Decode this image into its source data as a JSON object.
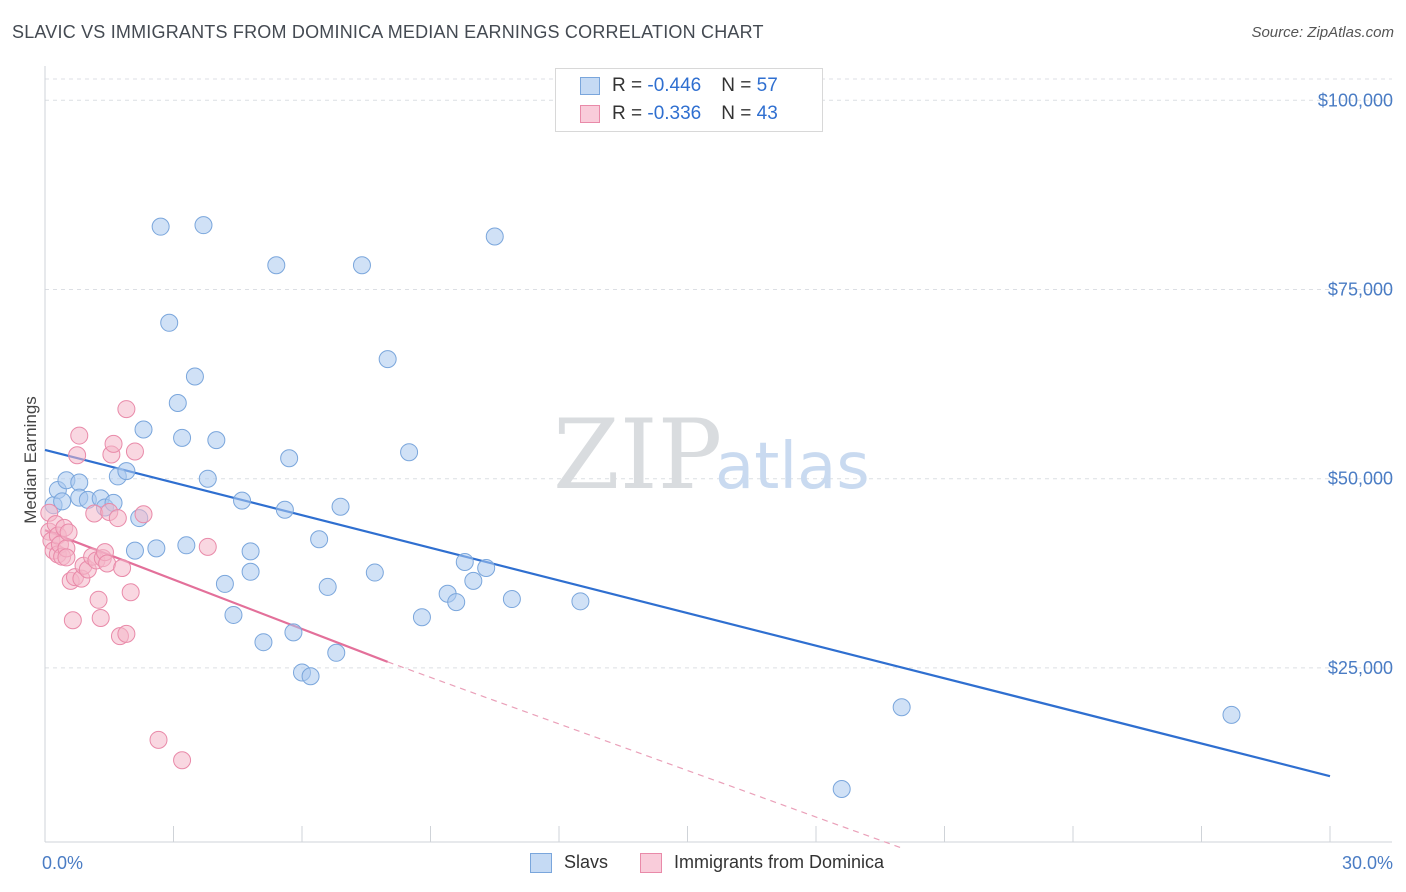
{
  "title": "SLAVIC VS IMMIGRANTS FROM DOMINICA MEDIAN EARNINGS CORRELATION CHART",
  "source": "Source: ZipAtlas.com",
  "watermark": {
    "part1": "ZIP",
    "part2": "atlas"
  },
  "legend": {
    "rows": [
      {
        "r_label": "R = ",
        "r_value": "-0.446",
        "n_label": "N = ",
        "n_value": "57",
        "color": "#a9c8ee"
      },
      {
        "r_label": "R = ",
        "r_value": "-0.336",
        "n_label": "N = ",
        "n_value": "43",
        "color": "#f4b7c9"
      }
    ]
  },
  "bottom_legend": [
    {
      "label": "Slavs",
      "color": "#a9c8ee"
    },
    {
      "label": "Immigrants from Dominica",
      "color": "#f4b7c9"
    }
  ],
  "chart_data": {
    "type": "scatter",
    "xlabel": "",
    "ylabel": "Median Earnings",
    "x_tick_labels": [
      "0.0%",
      "30.0%"
    ],
    "y_tick_labels": [
      "$25,000",
      "$50,000",
      "$75,000",
      "$100,000"
    ],
    "y_tick_values": [
      25000,
      50000,
      75000,
      100000
    ],
    "xlim": [
      0,
      30
    ],
    "ylim": [
      2000,
      104000
    ],
    "grid": true,
    "series": [
      {
        "name": "Slavs",
        "color": "#a9c8ee",
        "stroke": "#7aa6dc",
        "trend": {
          "x0": 0,
          "y0": 53800,
          "x1": 30,
          "y1": 10700,
          "color": "#2f6fd0"
        },
        "points": [
          [
            0.2,
            46500
          ],
          [
            0.3,
            48500
          ],
          [
            0.5,
            49800
          ],
          [
            0.4,
            47000
          ],
          [
            0.8,
            49500
          ],
          [
            0.8,
            47500
          ],
          [
            1.0,
            47200
          ],
          [
            1.3,
            47400
          ],
          [
            1.4,
            46200
          ],
          [
            1.6,
            46800
          ],
          [
            1.7,
            50300
          ],
          [
            1.9,
            51000
          ],
          [
            2.1,
            40500
          ],
          [
            2.2,
            44800
          ],
          [
            2.3,
            56500
          ],
          [
            2.6,
            40800
          ],
          [
            2.7,
            83300
          ],
          [
            2.9,
            70600
          ],
          [
            3.1,
            60000
          ],
          [
            3.2,
            55400
          ],
          [
            3.3,
            41200
          ],
          [
            3.5,
            63500
          ],
          [
            3.7,
            83500
          ],
          [
            3.8,
            50000
          ],
          [
            4.0,
            55100
          ],
          [
            4.2,
            36100
          ],
          [
            4.4,
            32000
          ],
          [
            4.6,
            47100
          ],
          [
            4.8,
            37700
          ],
          [
            4.8,
            40400
          ],
          [
            5.1,
            28400
          ],
          [
            5.4,
            78200
          ],
          [
            5.6,
            45900
          ],
          [
            5.7,
            52700
          ],
          [
            5.8,
            29700
          ],
          [
            6.0,
            24400
          ],
          [
            6.2,
            23900
          ],
          [
            6.4,
            42000
          ],
          [
            6.6,
            35700
          ],
          [
            6.8,
            27000
          ],
          [
            6.9,
            46300
          ],
          [
            7.4,
            78200
          ],
          [
            7.7,
            37600
          ],
          [
            8.0,
            65800
          ],
          [
            8.5,
            53500
          ],
          [
            8.8,
            31700
          ],
          [
            9.4,
            34800
          ],
          [
            9.6,
            33700
          ],
          [
            9.8,
            39000
          ],
          [
            10.0,
            36500
          ],
          [
            10.3,
            38200
          ],
          [
            10.5,
            82000
          ],
          [
            10.9,
            34100
          ],
          [
            12.5,
            33800
          ],
          [
            18.6,
            9000
          ],
          [
            20.0,
            19800
          ],
          [
            27.7,
            18800
          ]
        ]
      },
      {
        "name": "Immigrants from Dominica",
        "color": "#f4b7c9",
        "stroke": "#e98aa9",
        "trend": {
          "x0": 0,
          "y0": 43200,
          "x1": 8,
          "y1": 25800,
          "color": "#e3709a"
        },
        "trend_dashed": {
          "x0": 8,
          "y0": 25800,
          "x1": 20,
          "y1": 1200,
          "color": "#eaa0b9"
        },
        "points": [
          [
            0.1,
            45500
          ],
          [
            0.1,
            43000
          ],
          [
            0.15,
            41800
          ],
          [
            0.2,
            40500
          ],
          [
            0.25,
            44000
          ],
          [
            0.3,
            42500
          ],
          [
            0.3,
            40000
          ],
          [
            0.35,
            41300
          ],
          [
            0.4,
            39700
          ],
          [
            0.45,
            43500
          ],
          [
            0.5,
            40800
          ],
          [
            0.5,
            39600
          ],
          [
            0.55,
            42900
          ],
          [
            0.6,
            36500
          ],
          [
            0.65,
            31300
          ],
          [
            0.7,
            37000
          ],
          [
            0.75,
            53100
          ],
          [
            0.8,
            55700
          ],
          [
            0.85,
            36800
          ],
          [
            0.9,
            38500
          ],
          [
            1.0,
            38000
          ],
          [
            1.1,
            39700
          ],
          [
            1.15,
            45400
          ],
          [
            1.2,
            39200
          ],
          [
            1.25,
            34000
          ],
          [
            1.3,
            31600
          ],
          [
            1.35,
            39500
          ],
          [
            1.4,
            40300
          ],
          [
            1.45,
            38800
          ],
          [
            1.5,
            45600
          ],
          [
            1.55,
            53200
          ],
          [
            1.6,
            54600
          ],
          [
            1.7,
            44800
          ],
          [
            1.75,
            29200
          ],
          [
            1.8,
            38200
          ],
          [
            1.9,
            29500
          ],
          [
            1.9,
            59200
          ],
          [
            2.0,
            35000
          ],
          [
            2.1,
            53600
          ],
          [
            2.3,
            45300
          ],
          [
            2.65,
            15500
          ],
          [
            3.2,
            12800
          ],
          [
            3.8,
            41000
          ]
        ]
      }
    ]
  }
}
